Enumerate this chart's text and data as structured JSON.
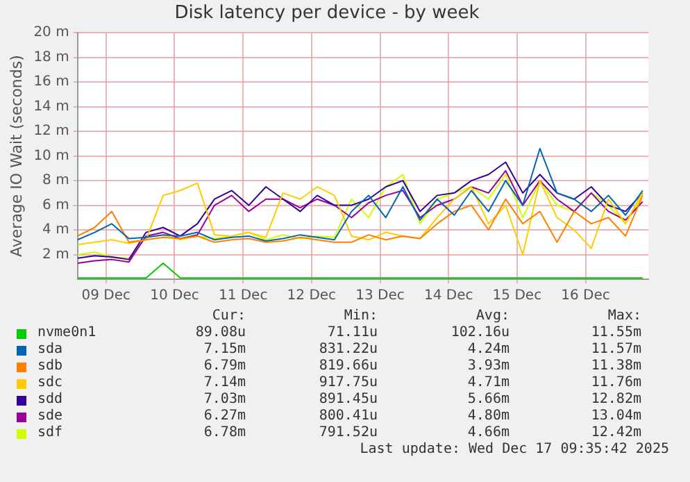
{
  "chart_data": {
    "type": "line",
    "title": "Disk latency per device - by week",
    "ylabel": "Average IO Wait (seconds)",
    "x": [
      "2025-12-09T02:00",
      "2025-12-09T08:00",
      "2025-12-09T14:00",
      "2025-12-09T20:00",
      "2025-12-10T02:00",
      "2025-12-10T08:00",
      "2025-12-10T14:00",
      "2025-12-10T20:00",
      "2025-12-11T02:00",
      "2025-12-11T08:00",
      "2025-12-11T14:00",
      "2025-12-11T20:00",
      "2025-12-12T02:00",
      "2025-12-12T08:00",
      "2025-12-12T14:00",
      "2025-12-12T20:00",
      "2025-12-13T02:00",
      "2025-12-13T08:00",
      "2025-12-13T14:00",
      "2025-12-13T20:00",
      "2025-12-14T02:00",
      "2025-12-14T08:00",
      "2025-12-14T14:00",
      "2025-12-14T20:00",
      "2025-12-15T02:00",
      "2025-12-15T08:00",
      "2025-12-15T14:00",
      "2025-12-15T20:00",
      "2025-12-16T02:00",
      "2025-12-16T08:00",
      "2025-12-16T14:00",
      "2025-12-16T20:00",
      "2025-12-17T02:00",
      "2025-12-17T08:00"
    ],
    "series": [
      {
        "name": "nvme0n1",
        "color": "#00cc00",
        "values": [
          0.1,
          0.1,
          0.1,
          0.1,
          0.1,
          1.3,
          0.1,
          0.1,
          0.1,
          0.1,
          0.1,
          0.1,
          0.1,
          0.1,
          0.1,
          0.1,
          0.1,
          0.1,
          0.1,
          0.1,
          0.1,
          0.1,
          0.1,
          0.1,
          0.1,
          0.1,
          0.1,
          0.1,
          0.1,
          0.1,
          0.1,
          0.1,
          0.1,
          0.1
        ]
      },
      {
        "name": "sda",
        "color": "#0066b3",
        "values": [
          3.2,
          3.8,
          4.5,
          3.3,
          3.4,
          3.6,
          3.5,
          3.8,
          3.2,
          3.4,
          3.5,
          3.1,
          3.3,
          3.6,
          3.4,
          3.2,
          5.5,
          6.8,
          5.0,
          7.5,
          4.8,
          6.5,
          5.2,
          7.2,
          5.5,
          8.0,
          6.0,
          10.6,
          7.0,
          6.5,
          5.5,
          6.8,
          5.2,
          7.2
        ]
      },
      {
        "name": "sdb",
        "color": "#ff8000",
        "values": [
          3.5,
          4.2,
          5.5,
          3.0,
          3.2,
          3.4,
          3.3,
          3.5,
          3.0,
          3.2,
          3.3,
          3.0,
          3.1,
          3.4,
          3.2,
          3.0,
          3.0,
          3.6,
          3.2,
          3.5,
          3.3,
          4.5,
          5.5,
          6.0,
          4.0,
          6.5,
          4.5,
          5.5,
          3.0,
          5.5,
          4.5,
          5.0,
          3.5,
          6.8
        ]
      },
      {
        "name": "sdc",
        "color": "#ffcc00",
        "values": [
          2.8,
          3.0,
          3.2,
          2.9,
          3.2,
          6.8,
          7.2,
          7.8,
          3.6,
          3.5,
          3.8,
          3.4,
          7.0,
          6.5,
          7.5,
          6.8,
          3.5,
          3.2,
          3.8,
          3.5,
          3.3,
          5.0,
          6.5,
          7.5,
          4.5,
          6.0,
          2.0,
          8.0,
          5.0,
          4.0,
          2.5,
          6.5,
          4.5,
          7.1
        ]
      },
      {
        "name": "sdd",
        "color": "#330099",
        "values": [
          1.7,
          1.9,
          1.8,
          1.6,
          3.8,
          4.2,
          3.5,
          4.5,
          6.5,
          7.2,
          6.0,
          7.5,
          6.5,
          5.5,
          6.8,
          6.0,
          6.0,
          6.5,
          7.5,
          8.0,
          5.5,
          6.8,
          7.0,
          8.0,
          8.5,
          9.5,
          7.0,
          8.5,
          7.0,
          6.5,
          7.5,
          6.0,
          5.5,
          7.0
        ]
      },
      {
        "name": "sde",
        "color": "#990099",
        "values": [
          1.3,
          1.5,
          1.6,
          1.4,
          3.5,
          3.8,
          3.3,
          3.6,
          6.0,
          6.8,
          5.5,
          6.5,
          6.5,
          5.8,
          6.5,
          6.0,
          5.0,
          6.2,
          6.8,
          7.2,
          5.0,
          6.0,
          6.5,
          7.5,
          7.0,
          8.8,
          6.0,
          8.0,
          6.5,
          5.5,
          7.0,
          5.5,
          4.8,
          6.3
        ]
      },
      {
        "name": "sdf",
        "color": "#ccff00",
        "values": [
          2.0,
          2.2,
          1.8,
          1.7,
          3.4,
          3.6,
          3.2,
          3.5,
          3.3,
          3.5,
          3.8,
          3.2,
          3.6,
          3.3,
          3.5,
          3.4,
          6.5,
          5.0,
          7.5,
          8.5,
          4.5,
          6.5,
          7.0,
          7.5,
          6.5,
          8.5,
          5.0,
          8.0,
          6.0,
          5.5,
          7.0,
          6.0,
          4.5,
          6.8
        ]
      }
    ],
    "xlim": [
      "2025-12-09T02:00",
      "2025-12-17T10:00"
    ],
    "xticks": [
      {
        "value": "2025-12-09T12:00",
        "label": "09 Dec"
      },
      {
        "value": "2025-12-10T12:00",
        "label": "10 Dec"
      },
      {
        "value": "2025-12-11T12:00",
        "label": "11 Dec"
      },
      {
        "value": "2025-12-12T12:00",
        "label": "12 Dec"
      },
      {
        "value": "2025-12-13T12:00",
        "label": "13 Dec"
      },
      {
        "value": "2025-12-14T12:00",
        "label": "14 Dec"
      },
      {
        "value": "2025-12-15T12:00",
        "label": "15 Dec"
      },
      {
        "value": "2025-12-16T12:00",
        "label": "16 Dec"
      }
    ],
    "ylim": [
      0,
      20
    ],
    "yticks": [
      {
        "value": 2,
        "label": "2 m"
      },
      {
        "value": 4,
        "label": "4 m"
      },
      {
        "value": 6,
        "label": "6 m"
      },
      {
        "value": 8,
        "label": "8 m"
      },
      {
        "value": 10,
        "label": "10 m"
      },
      {
        "value": 12,
        "label": "12 m"
      },
      {
        "value": 14,
        "label": "14 m"
      },
      {
        "value": 16,
        "label": "16 m"
      },
      {
        "value": 18,
        "label": "18 m"
      },
      {
        "value": 20,
        "label": "20 m"
      }
    ],
    "grid": true,
    "legend": "bottom",
    "marker": "none",
    "line_style": "solid",
    "annotations": [
      "Cur:",
      "Min:",
      "Avg:",
      "Max:",
      "89.08u",
      "71.11u",
      "102.16u",
      "11.55m",
      "7.15m",
      "831.22u",
      "4.24m",
      "11.57m",
      "6.79m",
      "819.66u",
      "3.93m",
      "11.38m",
      "7.14m",
      "917.75u",
      "4.71m",
      "11.76m",
      "7.03m",
      "891.45u",
      "5.66m",
      "12.82m",
      "6.27m",
      "800.41u",
      "4.80m",
      "13.04m",
      "6.78m",
      "791.52u",
      "4.66m",
      "12.42m",
      "Last update: Wed Dec 17 09:35:42 2025"
    ]
  }
}
